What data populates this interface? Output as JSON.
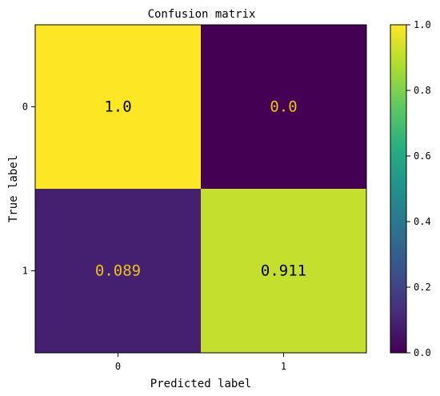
{
  "chart_data": {
    "type": "heatmap",
    "title": "Confusion matrix",
    "xlabel": "Predicted label",
    "ylabel": "True label",
    "x_categories": [
      "0",
      "1"
    ],
    "y_categories": [
      "0",
      "1"
    ],
    "values": [
      [
        1.0,
        0.0
      ],
      [
        0.089,
        0.911
      ]
    ],
    "value_labels": [
      [
        "1.0",
        "0.0"
      ],
      [
        "0.089",
        "0.911"
      ]
    ],
    "text_colors": [
      [
        "#000000",
        "#e8c21a"
      ],
      [
        "#e8c21a",
        "#000000"
      ]
    ],
    "colorbar": {
      "min": 0.0,
      "max": 1.0,
      "ticks": [
        0.0,
        0.2,
        0.4,
        0.6,
        0.8,
        1.0
      ],
      "tick_labels": [
        "0.0",
        "0.2",
        "0.4",
        "0.6",
        "0.8",
        "1.0"
      ],
      "colormap": "viridis"
    },
    "grid": false
  }
}
